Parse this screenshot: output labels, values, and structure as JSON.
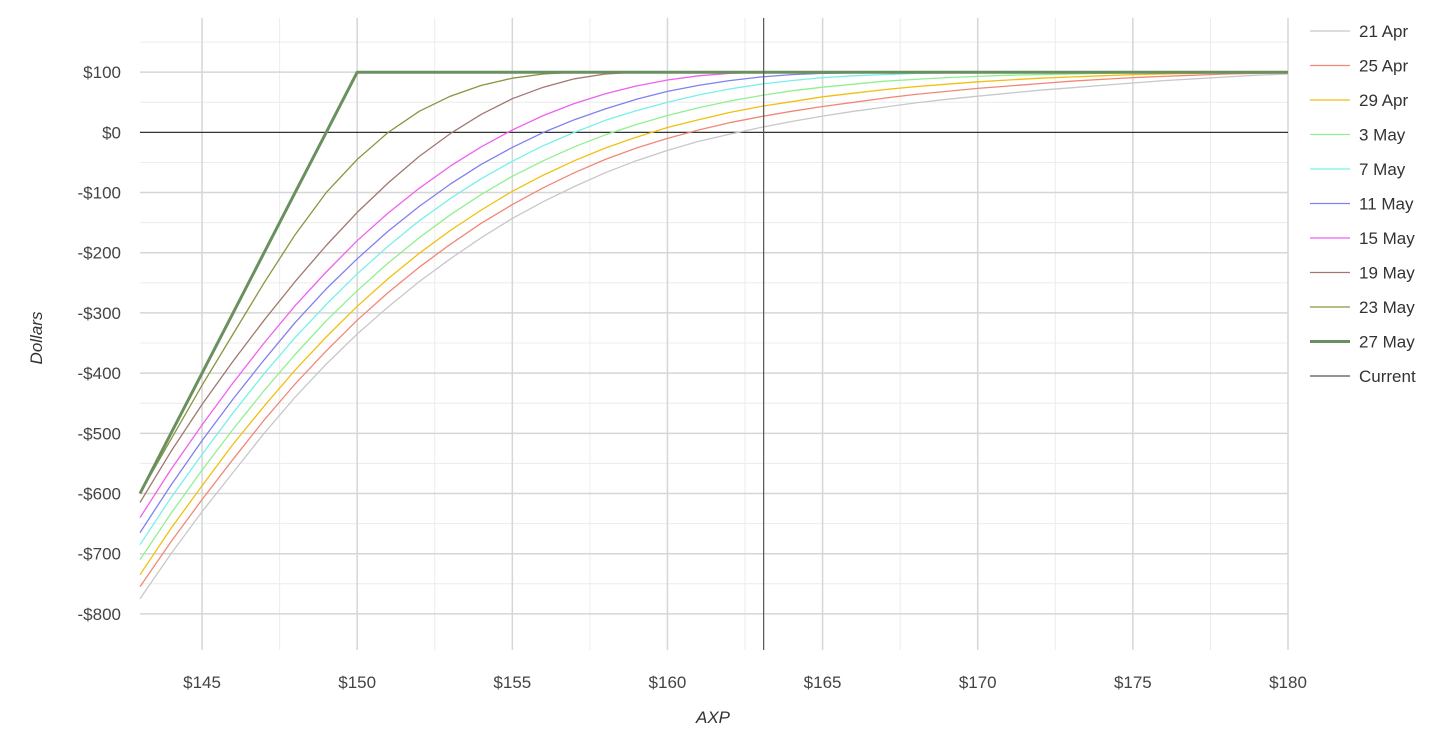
{
  "chart_data": {
    "type": "line",
    "title": "",
    "xlabel": "AXP",
    "ylabel": "Dollars",
    "xlim": [
      143,
      180
    ],
    "ylim": [
      -860,
      190
    ],
    "x_ticks": [
      145,
      150,
      155,
      160,
      165,
      170,
      175,
      180
    ],
    "x_tick_labels": [
      "$145",
      "$150",
      "$155",
      "$160",
      "$165",
      "$170",
      "$175",
      "$180"
    ],
    "y_ticks": [
      100,
      0,
      -100,
      -200,
      -300,
      -400,
      -500,
      -600,
      -700,
      -800
    ],
    "y_tick_labels": [
      "$100",
      "$0",
      "-$100",
      "-$200",
      "-$300",
      "-$400",
      "-$500",
      "-$600",
      "-$700",
      "-$800"
    ],
    "grid": true,
    "legend_position": "right",
    "x": [
      143,
      144,
      145,
      146,
      147,
      148,
      149,
      150,
      151,
      152,
      153,
      154,
      155,
      156,
      157,
      158,
      159,
      160,
      161,
      162,
      163,
      164,
      165,
      166,
      167,
      168,
      169,
      170,
      171,
      172,
      173,
      174,
      175,
      176,
      177,
      178,
      179,
      180
    ],
    "series": [
      {
        "name": "21 Apr",
        "color": "#c8c8c8",
        "width": 1.3,
        "values": [
          -775,
          -700,
          -630,
          -565,
          -500,
          -440,
          -385,
          -335,
          -290,
          -248,
          -210,
          -175,
          -143,
          -115,
          -90,
          -67,
          -47,
          -30,
          -15,
          -3,
          8,
          18,
          27,
          35,
          42,
          49,
          55,
          60,
          65,
          70,
          74,
          78,
          82,
          86,
          89,
          92,
          95,
          97
        ]
      },
      {
        "name": "25 Apr",
        "color": "#f08878",
        "width": 1.3,
        "values": [
          -755,
          -680,
          -610,
          -543,
          -478,
          -418,
          -363,
          -312,
          -266,
          -224,
          -186,
          -151,
          -120,
          -92,
          -67,
          -45,
          -26,
          -10,
          4,
          16,
          26,
          35,
          43,
          50,
          57,
          63,
          68,
          73,
          77,
          81,
          85,
          88,
          91,
          93,
          95,
          97,
          98,
          99
        ]
      },
      {
        "name": "29 Apr",
        "color": "#f0c010",
        "width": 1.3,
        "values": [
          -735,
          -658,
          -587,
          -518,
          -455,
          -395,
          -340,
          -289,
          -243,
          -201,
          -163,
          -129,
          -98,
          -71,
          -47,
          -26,
          -8,
          8,
          21,
          33,
          43,
          51,
          59,
          65,
          71,
          76,
          80,
          84,
          87,
          90,
          92,
          94,
          96,
          97,
          98,
          99,
          99,
          100
        ]
      },
      {
        "name": "3 May",
        "color": "#90f090",
        "width": 1.3,
        "values": [
          -710,
          -633,
          -561,
          -493,
          -429,
          -369,
          -313,
          -263,
          -217,
          -175,
          -137,
          -103,
          -73,
          -47,
          -24,
          -4,
          13,
          28,
          41,
          52,
          61,
          69,
          75,
          80,
          85,
          88,
          91,
          93,
          95,
          96,
          97,
          98,
          99,
          99,
          100,
          100,
          100,
          100
        ]
      },
      {
        "name": "7 May",
        "color": "#78f0e8",
        "width": 1.3,
        "values": [
          -685,
          -607,
          -535,
          -466,
          -401,
          -341,
          -286,
          -235,
          -189,
          -147,
          -110,
          -77,
          -48,
          -22,
          0,
          20,
          36,
          50,
          62,
          72,
          80,
          86,
          91,
          94,
          96,
          98,
          99,
          100,
          100,
          100,
          100,
          100,
          100,
          100,
          100,
          100,
          100,
          100
        ]
      },
      {
        "name": "11 May",
        "color": "#8080f0",
        "width": 1.3,
        "values": [
          -665,
          -586,
          -512,
          -443,
          -378,
          -316,
          -260,
          -210,
          -164,
          -123,
          -86,
          -53,
          -25,
          0,
          21,
          39,
          55,
          68,
          78,
          86,
          92,
          96,
          98,
          99,
          100,
          100,
          100,
          100,
          100,
          100,
          100,
          100,
          100,
          100,
          100,
          100,
          100,
          100
        ]
      },
      {
        "name": "15 May",
        "color": "#f060f0",
        "width": 1.3,
        "values": [
          -640,
          -560,
          -486,
          -416,
          -350,
          -288,
          -232,
          -180,
          -134,
          -93,
          -56,
          -24,
          4,
          28,
          48,
          64,
          77,
          87,
          94,
          98,
          100,
          100,
          100,
          100,
          100,
          100,
          100,
          100,
          100,
          100,
          100,
          100,
          100,
          100,
          100,
          100,
          100,
          100
        ]
      },
      {
        "name": "19 May",
        "color": "#a07870",
        "width": 1.3,
        "values": [
          -615,
          -530,
          -452,
          -380,
          -312,
          -248,
          -188,
          -133,
          -84,
          -40,
          -2,
          30,
          56,
          75,
          89,
          97,
          100,
          100,
          100,
          100,
          100,
          100,
          100,
          100,
          100,
          100,
          100,
          100,
          100,
          100,
          100,
          100,
          100,
          100,
          100,
          100,
          100,
          100
        ]
      },
      {
        "name": "23 May",
        "color": "#8a9440",
        "width": 1.3,
        "values": [
          -600,
          -510,
          -420,
          -335,
          -250,
          -170,
          -100,
          -45,
          0,
          35,
          60,
          78,
          90,
          97,
          100,
          100,
          100,
          100,
          100,
          100,
          100,
          100,
          100,
          100,
          100,
          100,
          100,
          100,
          100,
          100,
          100,
          100,
          100,
          100,
          100,
          100,
          100,
          100
        ]
      },
      {
        "name": "27 May",
        "color": "#6a9060",
        "width": 3,
        "values": [
          -600,
          -500,
          -400,
          -300,
          -200,
          -100,
          0,
          100,
          100,
          100,
          100,
          100,
          100,
          100,
          100,
          100,
          100,
          100,
          100,
          100,
          100,
          100,
          100,
          100,
          100,
          100,
          100,
          100,
          100,
          100,
          100,
          100,
          100,
          100,
          100,
          100,
          100,
          100
        ]
      }
    ],
    "current": {
      "name": "Current",
      "x": 163.1,
      "color": "#555555"
    },
    "zero_line_color": "#333333"
  }
}
